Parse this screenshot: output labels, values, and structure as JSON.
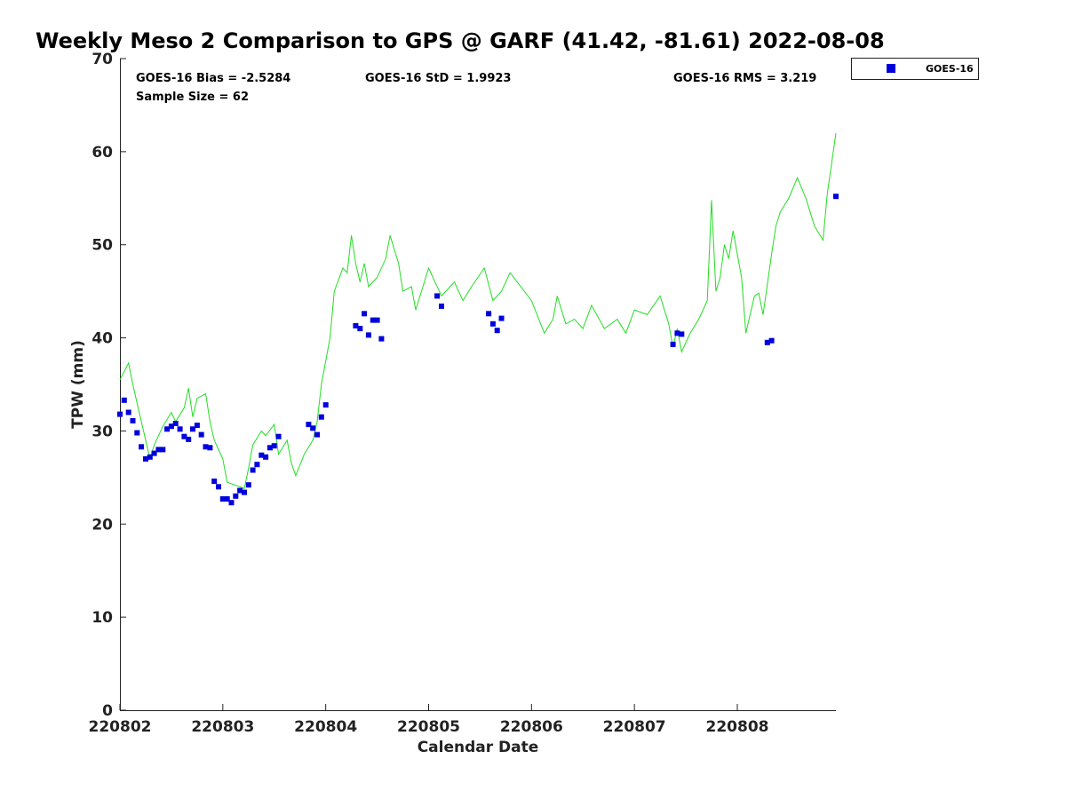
{
  "chart_data": {
    "type": "scatter",
    "title": "Weekly Meso 2 Comparison to GPS @ GARF (41.42, -81.61) 2022-08-08",
    "xlabel": "Calendar Date",
    "ylabel": "TPW (mm)",
    "xlim": [
      "2022-08-02",
      "2022-08-08 23:00"
    ],
    "ylim": [
      0,
      70
    ],
    "y_ticks": [
      0,
      10,
      20,
      30,
      40,
      50,
      60,
      70
    ],
    "x_ticks": [
      "220802",
      "220803",
      "220804",
      "220805",
      "220806",
      "220807",
      "220808"
    ],
    "grid": false,
    "legend": {
      "placement": "top-right outside",
      "entries": [
        "GOES-16"
      ]
    },
    "stats": {
      "bias": "GOES-16 Bias = -2.5284",
      "std": "GOES-16 StD = 1.9923",
      "rms": "GOES-16 RMS = 3.219",
      "sample": "Sample Size = 62"
    },
    "colors": {
      "series": "#0000dd",
      "line": "#22dd22"
    },
    "series": [
      {
        "name": "GOES-16",
        "kind": "scatter",
        "x": [
          "2022-08-02 00:00",
          "2022-08-02 01:00",
          "2022-08-02 02:00",
          "2022-08-02 03:00",
          "2022-08-02 04:00",
          "2022-08-02 05:00",
          "2022-08-02 06:00",
          "2022-08-02 07:00",
          "2022-08-02 08:00",
          "2022-08-02 09:00",
          "2022-08-02 10:00",
          "2022-08-02 11:00",
          "2022-08-02 12:00",
          "2022-08-02 13:00",
          "2022-08-02 14:00",
          "2022-08-02 15:00",
          "2022-08-02 16:00",
          "2022-08-02 17:00",
          "2022-08-02 18:00",
          "2022-08-02 19:00",
          "2022-08-02 20:00",
          "2022-08-02 21:00",
          "2022-08-02 22:00",
          "2022-08-02 23:00",
          "2022-08-03 00:00",
          "2022-08-03 01:00",
          "2022-08-03 02:00",
          "2022-08-03 03:00",
          "2022-08-03 04:00",
          "2022-08-03 05:00",
          "2022-08-03 06:00",
          "2022-08-03 07:00",
          "2022-08-03 08:00",
          "2022-08-03 09:00",
          "2022-08-03 10:00",
          "2022-08-03 11:00",
          "2022-08-03 12:00",
          "2022-08-03 13:00",
          "2022-08-03 20:00",
          "2022-08-03 21:00",
          "2022-08-03 22:00",
          "2022-08-03 23:00",
          "2022-08-04 00:00",
          "2022-08-04 07:00",
          "2022-08-04 08:00",
          "2022-08-04 09:00",
          "2022-08-04 10:00",
          "2022-08-04 11:00",
          "2022-08-04 12:00",
          "2022-08-04 13:00",
          "2022-08-05 02:00",
          "2022-08-05 03:00",
          "2022-08-05 14:00",
          "2022-08-05 15:00",
          "2022-08-05 16:00",
          "2022-08-05 17:00",
          "2022-08-07 09:00",
          "2022-08-07 10:00",
          "2022-08-07 11:00",
          "2022-08-08 07:00",
          "2022-08-08 08:00",
          "2022-08-08 23:00"
        ],
        "y": [
          31.8,
          33.3,
          32.0,
          31.1,
          29.8,
          28.3,
          27.0,
          27.2,
          27.6,
          28.0,
          28.0,
          30.2,
          30.5,
          30.8,
          30.2,
          29.4,
          29.1,
          30.2,
          30.6,
          29.6,
          28.3,
          28.2,
          24.6,
          24.0,
          22.7,
          22.7,
          22.3,
          23.0,
          23.6,
          23.4,
          24.2,
          25.8,
          26.4,
          27.4,
          27.2,
          28.2,
          28.4,
          29.4,
          30.7,
          30.3,
          29.6,
          31.5,
          32.8,
          41.3,
          41.0,
          42.6,
          40.3,
          41.9,
          41.9,
          39.9,
          44.5,
          43.4,
          42.6,
          41.5,
          40.8,
          42.1,
          39.3,
          40.5,
          40.4,
          39.5,
          39.7,
          55.2
        ]
      },
      {
        "name": "GPS",
        "kind": "line",
        "x": [
          "2022-08-02 00:00",
          "2022-08-02 02:00",
          "2022-08-02 03:00",
          "2022-08-02 05:00",
          "2022-08-02 06:00",
          "2022-08-02 07:00",
          "2022-08-02 08:00",
          "2022-08-02 10:00",
          "2022-08-02 12:00",
          "2022-08-02 13:00",
          "2022-08-02 15:00",
          "2022-08-02 16:00",
          "2022-08-02 17:00",
          "2022-08-02 18:00",
          "2022-08-02 20:00",
          "2022-08-02 21:00",
          "2022-08-02 22:00",
          "2022-08-03 00:00",
          "2022-08-03 01:00",
          "2022-08-03 04:00",
          "2022-08-03 05:00",
          "2022-08-03 06:00",
          "2022-08-03 07:00",
          "2022-08-03 09:00",
          "2022-08-03 10:00",
          "2022-08-03 12:00",
          "2022-08-03 13:00",
          "2022-08-03 15:00",
          "2022-08-03 16:00",
          "2022-08-03 17:00",
          "2022-08-03 19:00",
          "2022-08-03 21:00",
          "2022-08-03 22:00",
          "2022-08-03 23:00",
          "2022-08-04 01:00",
          "2022-08-04 02:00",
          "2022-08-04 04:00",
          "2022-08-04 05:00",
          "2022-08-04 06:00",
          "2022-08-04 07:00",
          "2022-08-04 08:00",
          "2022-08-04 09:00",
          "2022-08-04 10:00",
          "2022-08-04 12:00",
          "2022-08-04 14:00",
          "2022-08-04 15:00",
          "2022-08-04 17:00",
          "2022-08-04 18:00",
          "2022-08-04 20:00",
          "2022-08-04 21:00",
          "2022-08-05 00:00",
          "2022-08-05 03:00",
          "2022-08-05 06:00",
          "2022-08-05 08:00",
          "2022-08-05 10:00",
          "2022-08-05 13:00",
          "2022-08-05 15:00",
          "2022-08-05 17:00",
          "2022-08-05 19:00",
          "2022-08-06 00:00",
          "2022-08-06 03:00",
          "2022-08-06 05:00",
          "2022-08-06 06:00",
          "2022-08-06 08:00",
          "2022-08-06 10:00",
          "2022-08-06 12:00",
          "2022-08-06 14:00",
          "2022-08-06 17:00",
          "2022-08-06 20:00",
          "2022-08-06 22:00",
          "2022-08-07 00:00",
          "2022-08-07 03:00",
          "2022-08-07 06:00",
          "2022-08-07 08:00",
          "2022-08-07 09:00",
          "2022-08-07 10:00",
          "2022-08-07 11:00",
          "2022-08-07 13:00",
          "2022-08-07 15:00",
          "2022-08-07 17:00",
          "2022-08-07 18:00",
          "2022-08-07 19:00",
          "2022-08-07 20:00",
          "2022-08-07 21:00",
          "2022-08-07 22:00",
          "2022-08-07 23:00",
          "2022-08-08 01:00",
          "2022-08-08 02:00",
          "2022-08-08 04:00",
          "2022-08-08 05:00",
          "2022-08-08 06:00",
          "2022-08-08 08:00",
          "2022-08-08 09:00",
          "2022-08-08 10:00",
          "2022-08-08 12:00",
          "2022-08-08 14:00",
          "2022-08-08 16:00",
          "2022-08-08 18:00",
          "2022-08-08 20:00",
          "2022-08-08 21:00",
          "2022-08-08 23:00"
        ],
        "y": [
          35.5,
          37.3,
          35.0,
          31.0,
          29.0,
          27.0,
          28.5,
          30.5,
          32.0,
          31.0,
          32.5,
          34.6,
          31.5,
          33.5,
          34.0,
          31.0,
          29.0,
          27.0,
          24.5,
          24.0,
          23.8,
          26.0,
          28.5,
          30.0,
          29.5,
          30.7,
          27.5,
          29.0,
          26.5,
          25.2,
          27.5,
          29.0,
          31.0,
          35.0,
          40.0,
          45.0,
          47.5,
          47.0,
          51.0,
          48.0,
          46.0,
          48.0,
          45.5,
          46.5,
          48.5,
          51.0,
          48.0,
          45.0,
          45.5,
          43.0,
          47.5,
          44.5,
          46.0,
          44.0,
          45.5,
          47.5,
          44.0,
          45.0,
          47.0,
          44.0,
          40.5,
          42.0,
          44.5,
          41.5,
          42.0,
          41.0,
          43.5,
          41.0,
          42.0,
          40.5,
          43.0,
          42.5,
          44.5,
          41.5,
          39.0,
          41.0,
          38.5,
          40.5,
          42.0,
          44.0,
          54.8,
          45.0,
          46.5,
          50.0,
          48.5,
          51.5,
          46.5,
          40.5,
          44.5,
          44.8,
          42.5,
          49.0,
          52.0,
          53.5,
          55.0,
          57.2,
          55.0,
          52.0,
          50.5,
          55.5,
          62.0
        ]
      }
    ]
  }
}
